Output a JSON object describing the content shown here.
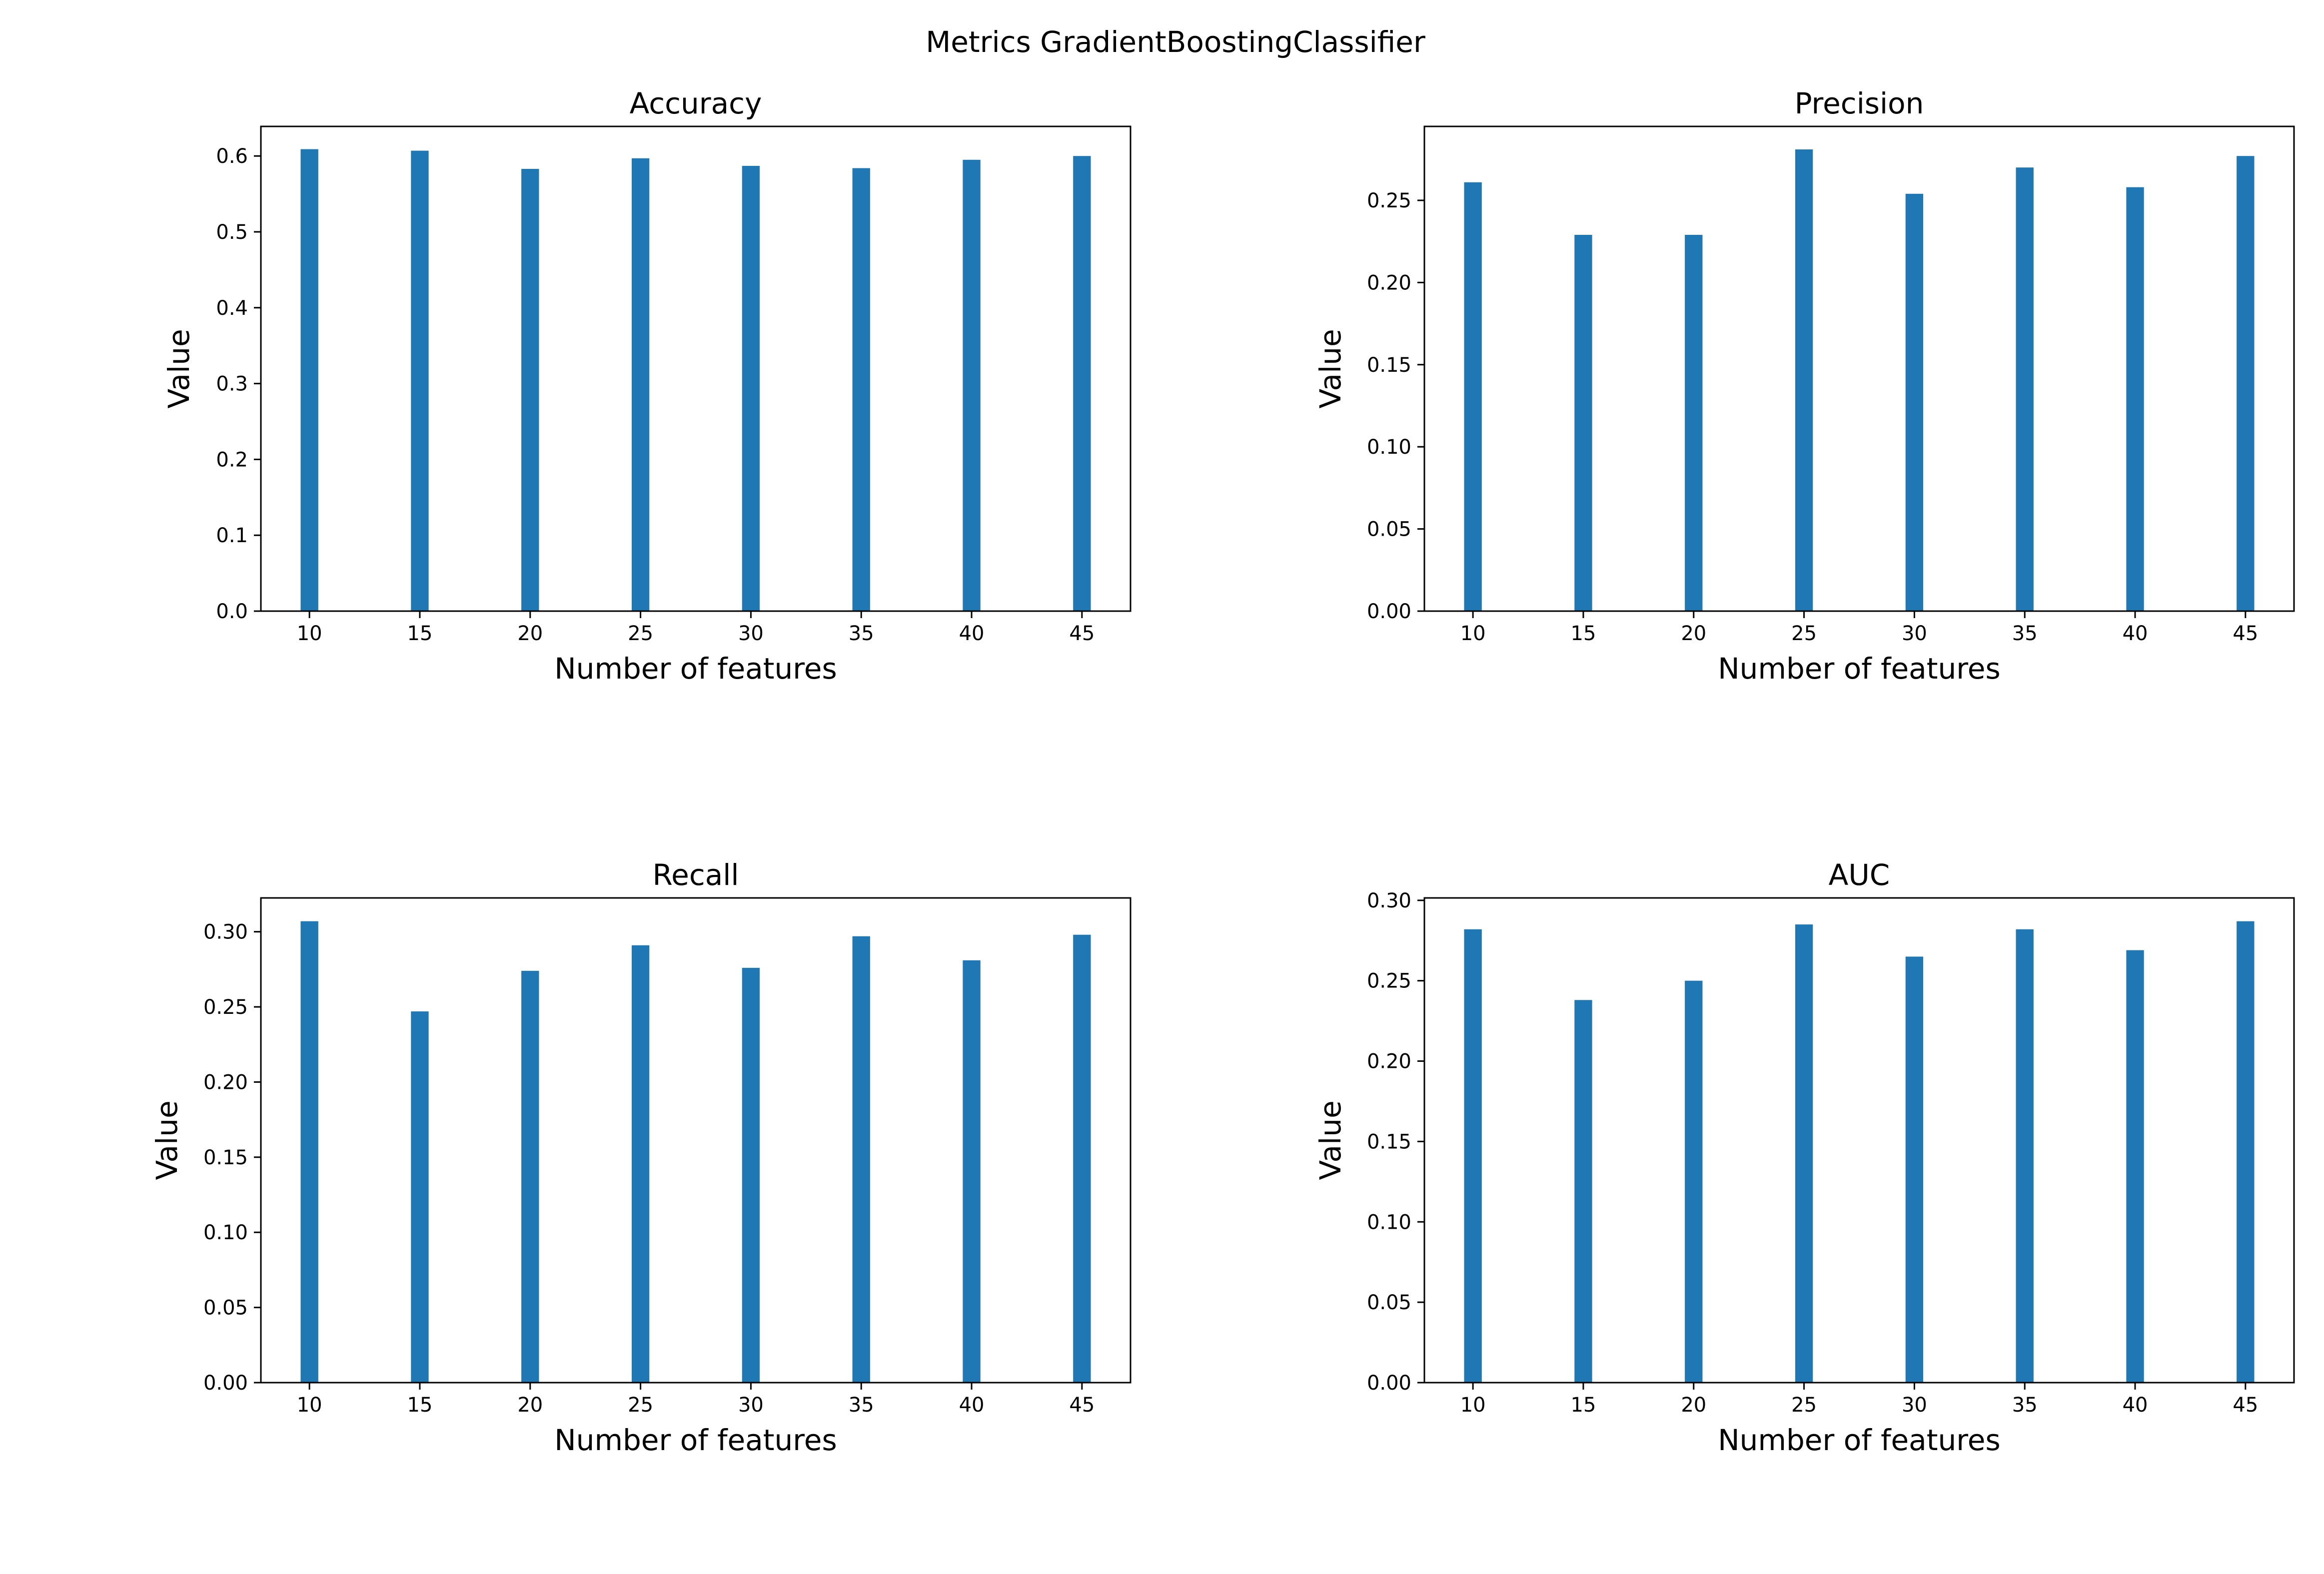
{
  "figure": {
    "suptitle": "Metrics GradientBoostingClassifier"
  },
  "colors": {
    "bar": "#1f77b4",
    "axes": "#000000",
    "background": "#ffffff"
  },
  "chart_data": [
    {
      "type": "bar",
      "title": "Accuracy",
      "xlabel": "Number of features",
      "ylabel": "Value",
      "x": [
        10,
        15,
        20,
        25,
        30,
        35,
        40,
        45
      ],
      "values": [
        0.609,
        0.607,
        0.583,
        0.597,
        0.587,
        0.584,
        0.595,
        0.6
      ],
      "xlim": [
        7.8,
        47.2
      ],
      "ylim": [
        0,
        0.639
      ],
      "xticks": [
        "10",
        "15",
        "20",
        "25",
        "30",
        "35",
        "40",
        "45"
      ],
      "yticks": [
        0.0,
        0.1,
        0.2,
        0.3,
        0.4,
        0.5,
        0.6
      ],
      "ytick_labels": [
        "0.0",
        "0.1",
        "0.2",
        "0.3",
        "0.4",
        "0.5",
        "0.6"
      ],
      "grid": false,
      "legend": "none"
    },
    {
      "type": "bar",
      "title": "Precision",
      "xlabel": "Number of features",
      "ylabel": "Value",
      "x": [
        10,
        15,
        20,
        25,
        30,
        35,
        40,
        45
      ],
      "values": [
        0.261,
        0.229,
        0.229,
        0.281,
        0.254,
        0.27,
        0.258,
        0.277
      ],
      "xlim": [
        7.8,
        47.2
      ],
      "ylim": [
        0,
        0.295
      ],
      "xticks": [
        "10",
        "15",
        "20",
        "25",
        "30",
        "35",
        "40",
        "45"
      ],
      "yticks": [
        0.0,
        0.05,
        0.1,
        0.15,
        0.2,
        0.25
      ],
      "ytick_labels": [
        "0.00",
        "0.05",
        "0.10",
        "0.15",
        "0.20",
        "0.25"
      ],
      "grid": false,
      "legend": "none"
    },
    {
      "type": "bar",
      "title": "Recall",
      "xlabel": "Number of features",
      "ylabel": "Value",
      "x": [
        10,
        15,
        20,
        25,
        30,
        35,
        40,
        45
      ],
      "values": [
        0.307,
        0.247,
        0.274,
        0.291,
        0.276,
        0.297,
        0.281,
        0.298
      ],
      "xlim": [
        7.8,
        47.2
      ],
      "ylim": [
        0,
        0.3225
      ],
      "xticks": [
        "10",
        "15",
        "20",
        "25",
        "30",
        "35",
        "40",
        "45"
      ],
      "yticks": [
        0.0,
        0.05,
        0.1,
        0.15,
        0.2,
        0.25,
        0.3
      ],
      "ytick_labels": [
        "0.00",
        "0.05",
        "0.10",
        "0.15",
        "0.20",
        "0.25",
        "0.30"
      ],
      "grid": false,
      "legend": "none"
    },
    {
      "type": "bar",
      "title": "AUC",
      "xlabel": "Number of features",
      "ylabel": "Value",
      "x": [
        10,
        15,
        20,
        25,
        30,
        35,
        40,
        45
      ],
      "values": [
        0.282,
        0.238,
        0.25,
        0.285,
        0.265,
        0.282,
        0.269,
        0.287
      ],
      "xlim": [
        7.8,
        47.2
      ],
      "ylim": [
        0,
        0.3015
      ],
      "xticks": [
        "10",
        "15",
        "20",
        "25",
        "30",
        "35",
        "40",
        "45"
      ],
      "yticks": [
        0.0,
        0.05,
        0.1,
        0.15,
        0.2,
        0.25,
        0.3
      ],
      "ytick_labels": [
        "0.00",
        "0.05",
        "0.10",
        "0.15",
        "0.20",
        "0.25",
        "0.30"
      ],
      "grid": false,
      "legend": "none"
    }
  ]
}
